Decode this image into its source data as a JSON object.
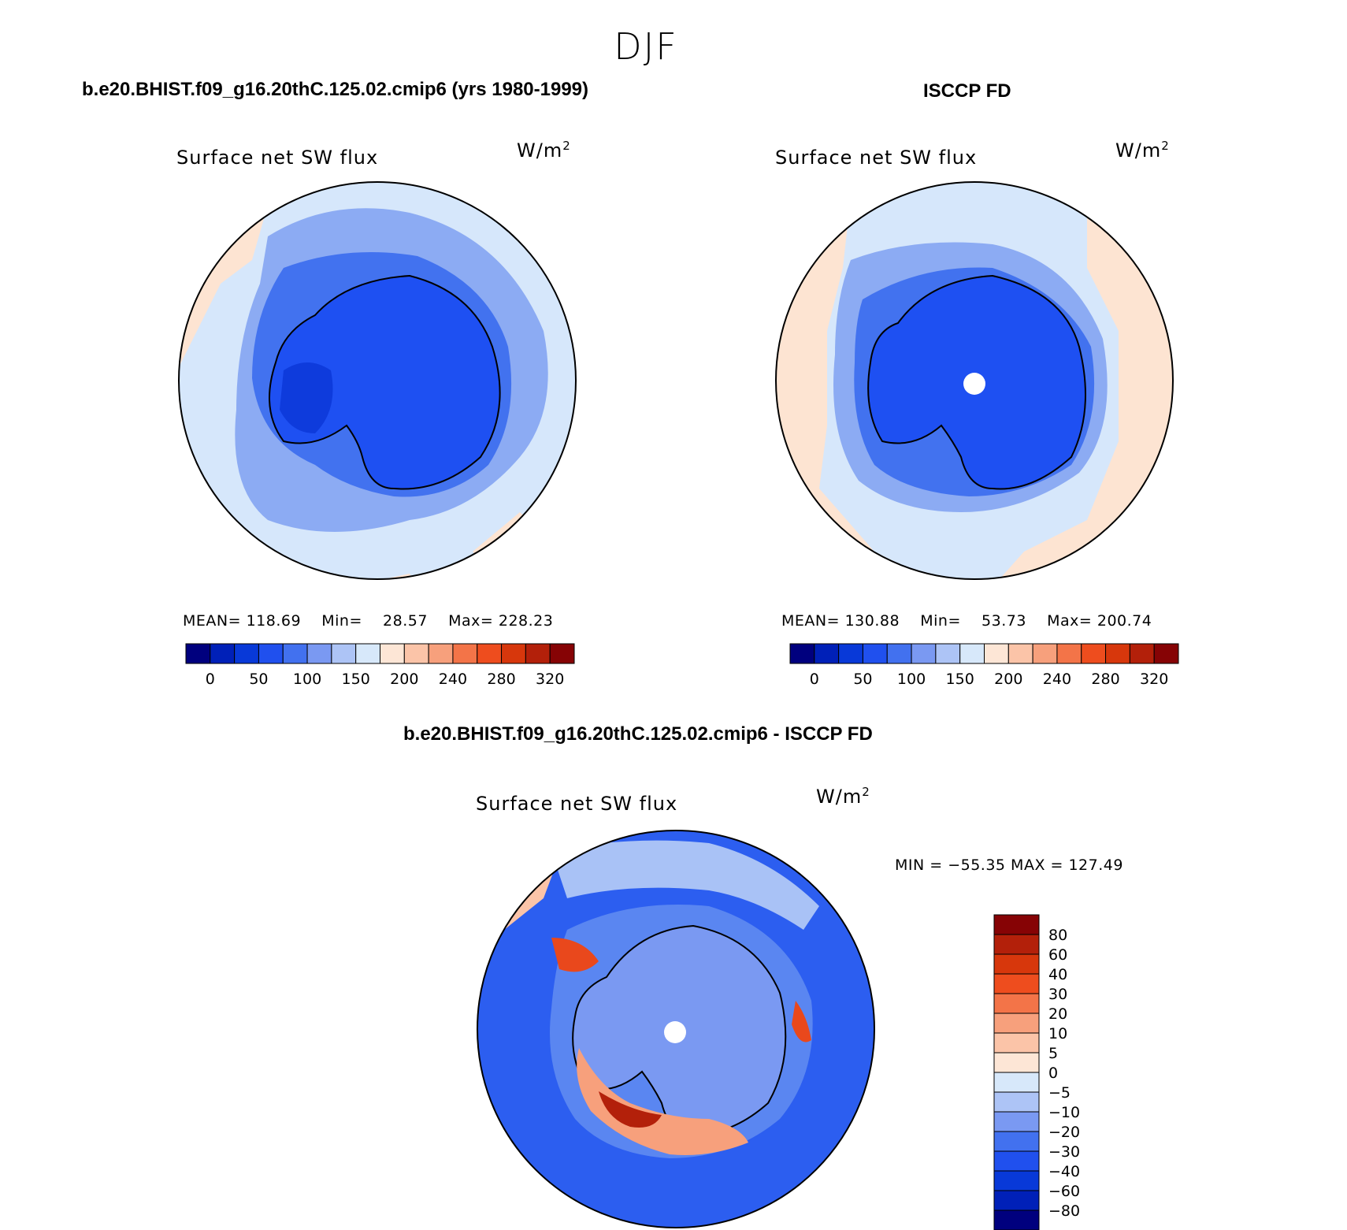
{
  "figure": {
    "season": "DJF",
    "panels": [
      {
        "title": "b.e20.BHIST.f09_g16.20thC.125.02.cmip6 (yrs 1980-1999)",
        "variable": "Surface net SW flux",
        "units": "W/m",
        "units_exp": "2",
        "stats": {
          "mean_label": "MEAN=",
          "mean": "118.69",
          "min_label": "Min=",
          "min": "28.57",
          "max_label": "Max=",
          "max": "228.23"
        }
      },
      {
        "title": "ISCCP FD",
        "variable": "Surface net SW flux",
        "units": "W/m",
        "units_exp": "2",
        "stats": {
          "mean_label": "MEAN=",
          "mean": "130.88",
          "min_label": "Min=",
          "min": "53.73",
          "max_label": "Max=",
          "max": "200.74"
        }
      },
      {
        "title": "b.e20.BHIST.f09_g16.20thC.125.02.cmip6 - ISCCP FD",
        "variable": "Surface net SW flux",
        "units": "W/m",
        "units_exp": "2",
        "minmax": "MIN = −55.35 MAX = 127.49"
      }
    ]
  },
  "colorbars": {
    "absolute": {
      "colors": [
        "#00007e",
        "#0020b8",
        "#0839d8",
        "#2050ee",
        "#4271ef",
        "#7a99f2",
        "#adc4f6",
        "#d7e8fa",
        "#fde6d6",
        "#fbc4a8",
        "#f7a07c",
        "#f37448",
        "#ee4d1e",
        "#d7370c",
        "#b3200a",
        "#860305"
      ],
      "labels": [
        "0",
        "50",
        "100",
        "150",
        "200",
        "240",
        "280",
        "320"
      ]
    },
    "difference": {
      "colors": [
        "#00007e",
        "#0020b8",
        "#0839d8",
        "#2050ee",
        "#4271ef",
        "#7a99f2",
        "#adc4f6",
        "#d7e8fa",
        "#fde6d6",
        "#fbc4a8",
        "#f7a07c",
        "#f37448",
        "#ee4d1e",
        "#d7370c",
        "#b3200a",
        "#860305"
      ],
      "labels": [
        "−80",
        "−60",
        "−40",
        "−30",
        "−20",
        "−10",
        "−5",
        "0",
        "5",
        "10",
        "20",
        "30",
        "40",
        "60",
        "80"
      ]
    }
  },
  "map_colors": {
    "ice_sheet": "#1e50f2",
    "ice_sheet_dark": "#0e3bdc",
    "coastal_ring": "#4272ef",
    "mid_ring": "#8cabf3",
    "outer_ocean": "#d6e7fb",
    "warm_ocean": "#fde4d2",
    "warm_pale": "#fbd0b8",
    "diff_ocean": "#2c5ef0",
    "diff_ring": "#5a86f1",
    "diff_light": "#a9c2f6",
    "diff_red": "#e9481c",
    "diff_orange": "#f7a07c",
    "diff_dark_red": "#b3200a",
    "coast_line": "#000000"
  }
}
